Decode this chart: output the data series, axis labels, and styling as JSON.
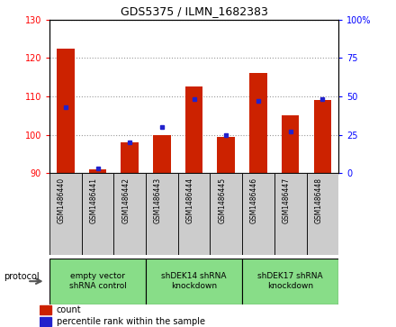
{
  "title": "GDS5375 / ILMN_1682383",
  "samples": [
    "GSM1486440",
    "GSM1486441",
    "GSM1486442",
    "GSM1486443",
    "GSM1486444",
    "GSM1486445",
    "GSM1486446",
    "GSM1486447",
    "GSM1486448"
  ],
  "counts": [
    122.5,
    91.0,
    98.0,
    100.0,
    112.5,
    99.5,
    116.0,
    105.0,
    109.0
  ],
  "percentile_ranks": [
    43,
    3,
    20,
    30,
    48,
    25,
    47,
    27,
    48
  ],
  "ylim_left": [
    90,
    130
  ],
  "ylim_right": [
    0,
    100
  ],
  "yticks_left": [
    90,
    100,
    110,
    120,
    130
  ],
  "yticks_right": [
    0,
    25,
    50,
    75,
    100
  ],
  "bar_color": "#cc2200",
  "marker_color": "#2222cc",
  "bar_bottom": 90,
  "groups": [
    {
      "label": "empty vector\nshRNA control",
      "color": "#88dd88"
    },
    {
      "label": "shDEK14 shRNA\nknockdown",
      "color": "#88dd88"
    },
    {
      "label": "shDEK17 shRNA\nknockdown",
      "color": "#88dd88"
    }
  ],
  "sample_box_color": "#cccccc",
  "protocol_label": "protocol",
  "legend_count_label": "count",
  "legend_pct_label": "percentile rank within the sample",
  "grid_color": "#999999",
  "plot_bg": "#ffffff",
  "fig_bg": "#ffffff"
}
